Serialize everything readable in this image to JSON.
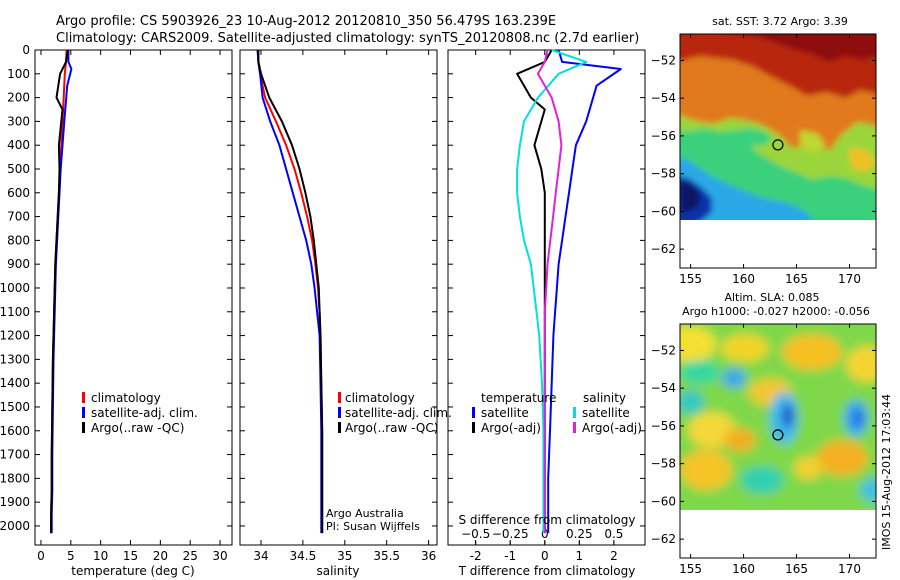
{
  "header": {
    "line1": "Argo profile: CS 5903926_23 10-Aug-2012 20120810_350 56.479S 163.239E",
    "line2": "Climatology: CARS2009. Satellite-adjusted climatology: synTS_20120808.nc (2.7d earlier)"
  },
  "colors": {
    "climatology": "#ff0000",
    "satellite": "#0000ff",
    "argo": "#000000",
    "satellite_s": "#00e0e0",
    "argo_s": "#e020e0"
  },
  "chart_data": [
    {
      "type": "line",
      "panel": "temperature",
      "xlabel": "temperature (deg C)",
      "ylabel": "",
      "xlim": [
        -1,
        32
      ],
      "ylim": [
        2080,
        0
      ],
      "xticks": [
        0,
        5,
        10,
        15,
        20,
        25,
        30
      ],
      "yticks": [
        0,
        100,
        200,
        300,
        400,
        500,
        600,
        700,
        800,
        900,
        1000,
        1100,
        1200,
        1300,
        1400,
        1500,
        1600,
        1700,
        1800,
        1900,
        2000
      ],
      "legend": [
        "climatology",
        "satellite-adj. clim.",
        "Argo(..raw -QC)"
      ],
      "series": [
        {
          "name": "climatology",
          "color": "#ff0000",
          "x": [
            4.3,
            4.2,
            4.0,
            3.8,
            3.6,
            3.4,
            3.2,
            3.0,
            2.8,
            2.6,
            2.4,
            2.3,
            2.2,
            2.1,
            2.0,
            1.9,
            1.8,
            1.8,
            1.7,
            1.7
          ],
          "y": [
            0,
            50,
            100,
            200,
            300,
            400,
            500,
            600,
            700,
            800,
            900,
            1000,
            1100,
            1200,
            1300,
            1500,
            1700,
            1850,
            1950,
            2030
          ]
        },
        {
          "name": "satellite-adj. clim.",
          "color": "#0000ff",
          "x": [
            4.6,
            4.6,
            5.1,
            4.4,
            3.9,
            3.6,
            3.3,
            3.1,
            2.9,
            2.7,
            2.5,
            2.4,
            2.3,
            2.2,
            2.1,
            2.0,
            1.9,
            1.9,
            1.8,
            1.8
          ],
          "y": [
            0,
            50,
            80,
            150,
            300,
            400,
            500,
            600,
            700,
            800,
            900,
            1000,
            1100,
            1200,
            1300,
            1500,
            1700,
            1850,
            1950,
            2030
          ]
        },
        {
          "name": "Argo(..raw -QC)",
          "color": "#000000",
          "x": [
            4.5,
            4.2,
            3.2,
            2.6,
            3.6,
            3.0,
            3.1,
            3.0,
            2.8,
            2.6,
            2.4,
            2.3,
            2.2,
            2.1,
            2.0,
            1.9,
            1.8,
            1.8,
            1.7,
            1.7
          ],
          "y": [
            0,
            50,
            100,
            200,
            250,
            400,
            500,
            600,
            700,
            800,
            900,
            1000,
            1100,
            1200,
            1300,
            1500,
            1700,
            1850,
            1950,
            2030
          ]
        }
      ]
    },
    {
      "type": "line",
      "panel": "salinity",
      "xlabel": "salinity",
      "xlim": [
        33.75,
        36.1
      ],
      "ylim": [
        2080,
        0
      ],
      "xticks": [
        34,
        34.5,
        35,
        35.5,
        36
      ],
      "xticklabels": [
        "34",
        "34.5",
        "35",
        "35.5",
        "36"
      ],
      "legend": [
        "climatology",
        "satellite-adj. clim.",
        "Argo(..raw -QC)"
      ],
      "annotation": [
        "Argo Australia",
        "PI: Susan Wijffels"
      ],
      "series": [
        {
          "name": "climatology",
          "color": "#ff0000",
          "x": [
            33.96,
            33.97,
            33.99,
            34.05,
            34.18,
            34.3,
            34.4,
            34.48,
            34.55,
            34.61,
            34.65,
            34.68,
            34.7,
            34.71,
            34.72,
            34.73,
            34.73,
            34.73
          ],
          "y": [
            0,
            50,
            100,
            200,
            300,
            400,
            500,
            600,
            700,
            800,
            900,
            1000,
            1100,
            1200,
            1400,
            1600,
            1800,
            2030
          ]
        },
        {
          "name": "satellite-adj. clim.",
          "color": "#0000ff",
          "x": [
            33.96,
            33.97,
            33.99,
            34.02,
            34.11,
            34.22,
            34.3,
            34.38,
            34.46,
            34.54,
            34.6,
            34.64,
            34.67,
            34.7,
            34.71,
            34.72,
            34.72,
            34.72
          ],
          "y": [
            0,
            50,
            100,
            200,
            300,
            400,
            500,
            600,
            700,
            800,
            900,
            1000,
            1100,
            1200,
            1400,
            1600,
            1800,
            2030
          ]
        },
        {
          "name": "Argo(..raw -QC)",
          "color": "#000000",
          "x": [
            33.97,
            33.97,
            34.0,
            34.1,
            34.25,
            34.37,
            34.46,
            34.53,
            34.59,
            34.63,
            34.66,
            34.69,
            34.7,
            34.71,
            34.72,
            34.73,
            34.73,
            34.73
          ],
          "y": [
            0,
            50,
            100,
            200,
            300,
            400,
            500,
            600,
            700,
            800,
            900,
            1000,
            1100,
            1200,
            1400,
            1600,
            1800,
            2030
          ]
        }
      ]
    },
    {
      "type": "line",
      "panel": "difference",
      "xlabel": "T difference from climatology",
      "xlabel_top": "S difference from climatology",
      "xlim_T": [
        -2.8,
        2.9
      ],
      "ylim": [
        2080,
        0
      ],
      "xticks_T": [
        -2,
        -1,
        0,
        1,
        2
      ],
      "xticks_S": [
        -0.5,
        -0.25,
        0,
        0.25,
        0.5
      ],
      "xticklabels_S": [
        "−0.5",
        "−0.25",
        "0",
        "0.25",
        "0.5"
      ],
      "legend_left": {
        "title": "temperature",
        "items": [
          "satellite",
          "Argo(-adj)"
        ]
      },
      "legend_right": {
        "title": "salinity",
        "items": [
          "satellite",
          "Argo(-adj)"
        ]
      },
      "series": [
        {
          "name": "T satellite",
          "color": "#0000ff",
          "x": [
            0.4,
            0.5,
            2.2,
            1.5,
            1.2,
            0.9,
            0.8,
            0.7,
            0.6,
            0.5,
            0.4,
            0.35,
            0.3,
            0.25,
            0.2,
            0.15,
            0.1,
            0.1
          ],
          "y": [
            0,
            50,
            80,
            150,
            300,
            400,
            500,
            600,
            700,
            800,
            900,
            1000,
            1100,
            1200,
            1400,
            1600,
            1800,
            2030
          ]
        },
        {
          "name": "T Argo(-adj)",
          "color": "#000000",
          "x": [
            0.2,
            0.0,
            -0.8,
            -0.4,
            0.0,
            -0.3,
            -0.1,
            0.0,
            0.0,
            0.0,
            0.0,
            0.0,
            0.0,
            0.0,
            0.0,
            0.0,
            0.0,
            0.0
          ],
          "y": [
            0,
            50,
            100,
            200,
            250,
            400,
            500,
            600,
            700,
            800,
            900,
            1000,
            1100,
            1200,
            1400,
            1600,
            1800,
            2030
          ]
        },
        {
          "name": "S satellite",
          "color": "#00e0e0",
          "x": [
            0.05,
            0.3,
            0.1,
            -0.05,
            -0.15,
            -0.18,
            -0.2,
            -0.2,
            -0.18,
            -0.15,
            -0.1,
            -0.08,
            -0.06,
            -0.04,
            -0.02,
            -0.01,
            -0.01,
            -0.01
          ],
          "y": [
            0,
            50,
            100,
            200,
            300,
            400,
            500,
            600,
            700,
            800,
            900,
            1000,
            1100,
            1200,
            1400,
            1600,
            1800,
            2030
          ]
        },
        {
          "name": "S Argo(-adj)",
          "color": "#e020e0",
          "x": [
            0.02,
            0.0,
            -0.05,
            0.05,
            0.1,
            0.12,
            0.1,
            0.08,
            0.06,
            0.04,
            0.02,
            0.01,
            0.0,
            0.0,
            0.0,
            0.0,
            0.0,
            0.0
          ],
          "y": [
            0,
            50,
            100,
            200,
            300,
            400,
            500,
            600,
            700,
            800,
            900,
            1000,
            1100,
            1200,
            1400,
            1600,
            1800,
            2030
          ]
        }
      ]
    },
    {
      "type": "heatmap",
      "panel": "sst_map",
      "title": "sat. SST: 3.72 Argo: 3.39",
      "xlim": [
        154,
        172.5
      ],
      "ylim": [
        -63,
        -50.6
      ],
      "xticks": [
        155,
        160,
        165,
        170
      ],
      "yticks": [
        -52,
        -54,
        -56,
        -58,
        -60,
        -62
      ],
      "argo_position": [
        163.239,
        -56.479
      ]
    },
    {
      "type": "heatmap",
      "panel": "sla_map",
      "title": "Altim. SLA: 0.085",
      "subtitle": "Argo h1000: -0.027 h2000: -0.056",
      "xlim": [
        154,
        172.5
      ],
      "ylim": [
        -63,
        -50.6
      ],
      "xticks": [
        155,
        160,
        165,
        170
      ],
      "yticks": [
        -52,
        -54,
        -56,
        -58,
        -60,
        -62
      ],
      "argo_position": [
        163.239,
        -56.479
      ]
    }
  ],
  "footer": {
    "stamp": "IMOS 15-Aug-2012 17:03:44"
  }
}
